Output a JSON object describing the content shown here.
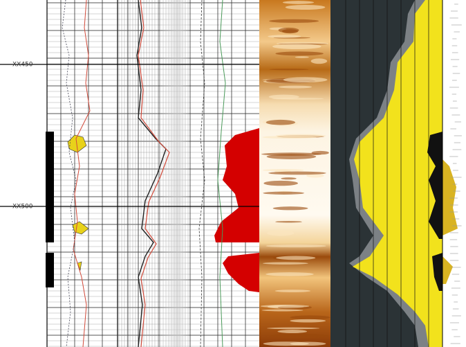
{
  "depth_labels": [
    "XX450",
    "XX500"
  ]
}
